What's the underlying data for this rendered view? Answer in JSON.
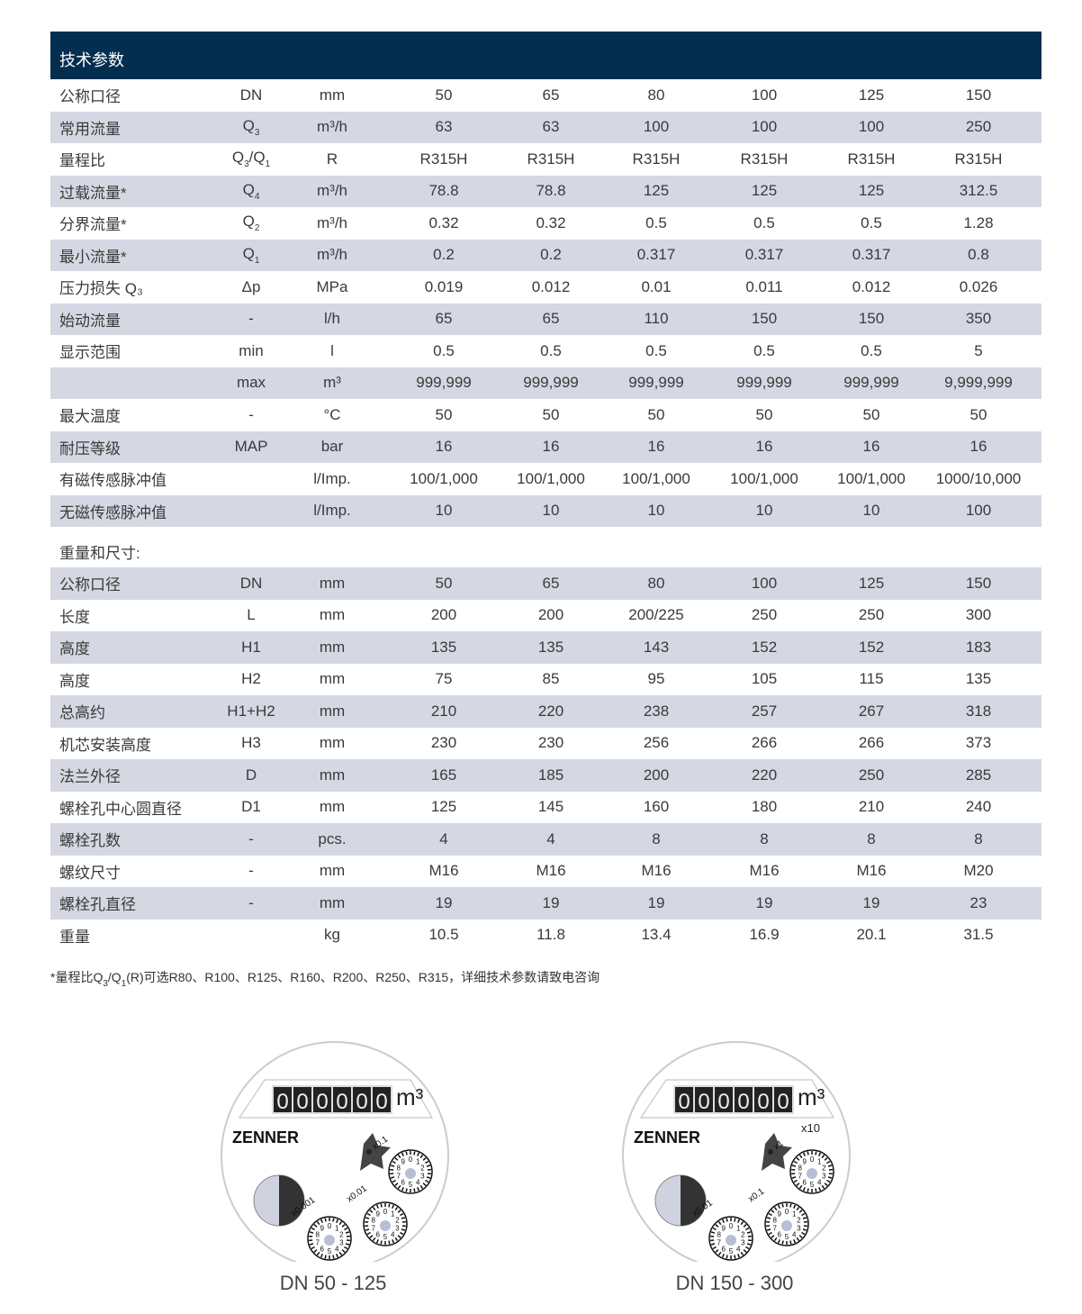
{
  "header": {
    "title": "技术参数"
  },
  "tech": {
    "rows": [
      {
        "label": "公称口径",
        "symbol": [
          {
            "t": "DN"
          }
        ],
        "unit": "mm",
        "values": [
          "50",
          "65",
          "80",
          "100",
          "125",
          "150"
        ]
      },
      {
        "label": "常用流量",
        "symbol": [
          {
            "t": "Q"
          },
          {
            "s": "3"
          }
        ],
        "unit": "m³/h",
        "values": [
          "63",
          "63",
          "100",
          "100",
          "100",
          "250"
        ]
      },
      {
        "label": "量程比",
        "symbol": [
          {
            "t": "Q"
          },
          {
            "s": "3"
          },
          {
            "t": "/Q"
          },
          {
            "s": "1"
          }
        ],
        "unit": "R",
        "values": [
          "R315H",
          "R315H",
          "R315H",
          "R315H",
          "R315H",
          "R315H"
        ]
      },
      {
        "label": "过载流量*",
        "symbol": [
          {
            "t": "Q"
          },
          {
            "s": "4"
          }
        ],
        "unit": "m³/h",
        "values": [
          "78.8",
          "78.8",
          "125",
          "125",
          "125",
          "312.5"
        ]
      },
      {
        "label": "分界流量*",
        "symbol": [
          {
            "t": "Q"
          },
          {
            "s": "2"
          }
        ],
        "unit": "m³/h",
        "values": [
          "0.32",
          "0.32",
          "0.5",
          "0.5",
          "0.5",
          "1.28"
        ]
      },
      {
        "label": "最小流量*",
        "symbol": [
          {
            "t": "Q"
          },
          {
            "s": "1"
          }
        ],
        "unit": "m³/h",
        "values": [
          "0.2",
          "0.2",
          "0.317",
          "0.317",
          "0.317",
          "0.8"
        ]
      },
      {
        "label": "压力损失 Q₃",
        "symbol": [
          {
            "t": "Δp"
          }
        ],
        "unit": "MPa",
        "values": [
          "0.019",
          "0.012",
          "0.01",
          "0.011",
          "0.012",
          "0.026"
        ]
      },
      {
        "label": "始动流量",
        "symbol": [
          {
            "t": "-"
          }
        ],
        "unit": "l/h",
        "values": [
          "65",
          "65",
          "110",
          "150",
          "150",
          "350"
        ]
      },
      {
        "label": "显示范围",
        "symbol": [
          {
            "t": "min"
          }
        ],
        "unit": "l",
        "values": [
          "0.5",
          "0.5",
          "0.5",
          "0.5",
          "0.5",
          "5"
        ]
      },
      {
        "label": "",
        "symbol": [
          {
            "t": "max"
          }
        ],
        "unit": "m³",
        "values": [
          "999,999",
          "999,999",
          "999,999",
          "999,999",
          "999,999",
          "9,999,999"
        ]
      },
      {
        "label": "最大温度",
        "symbol": [
          {
            "t": "-"
          }
        ],
        "unit": "°C",
        "values": [
          "50",
          "50",
          "50",
          "50",
          "50",
          "50"
        ]
      },
      {
        "label": "耐压等级",
        "symbol": [
          {
            "t": "MAP"
          }
        ],
        "unit": "bar",
        "values": [
          "16",
          "16",
          "16",
          "16",
          "16",
          "16"
        ]
      },
      {
        "label": "有磁传感脉冲值",
        "symbol": [],
        "unit": "l/Imp.",
        "values": [
          "100/1,000",
          "100/1,000",
          "100/1,000",
          "100/1,000",
          "100/1,000",
          "1000/10,000"
        ]
      },
      {
        "label": "无磁传感脉冲值",
        "symbol": [],
        "unit": "l/Imp.",
        "values": [
          "10",
          "10",
          "10",
          "10",
          "10",
          "100"
        ]
      }
    ]
  },
  "dims": {
    "title": "重量和尺寸:",
    "rows": [
      {
        "label": "公称口径",
        "symbol": [
          {
            "t": "DN"
          }
        ],
        "unit": "mm",
        "values": [
          "50",
          "65",
          "80",
          "100",
          "125",
          "150"
        ]
      },
      {
        "label": "长度",
        "symbol": [
          {
            "t": "L"
          }
        ],
        "unit": "mm",
        "values": [
          "200",
          "200",
          "200/225",
          "250",
          "250",
          "300"
        ]
      },
      {
        "label": "高度",
        "symbol": [
          {
            "t": "H1"
          }
        ],
        "unit": "mm",
        "values": [
          "135",
          "135",
          "143",
          "152",
          "152",
          "183"
        ]
      },
      {
        "label": "高度",
        "symbol": [
          {
            "t": "H2"
          }
        ],
        "unit": "mm",
        "values": [
          "75",
          "85",
          "95",
          "105",
          "115",
          "135"
        ]
      },
      {
        "label": "总高约",
        "symbol": [
          {
            "t": "H1+H2"
          }
        ],
        "unit": "mm",
        "values": [
          "210",
          "220",
          "238",
          "257",
          "267",
          "318"
        ]
      },
      {
        "label": "机芯安装高度",
        "symbol": [
          {
            "t": "H3"
          }
        ],
        "unit": "mm",
        "values": [
          "230",
          "230",
          "256",
          "266",
          "266",
          "373"
        ]
      },
      {
        "label": "法兰外径",
        "symbol": [
          {
            "t": "D"
          }
        ],
        "unit": "mm",
        "values": [
          "165",
          "185",
          "200",
          "220",
          "250",
          "285"
        ]
      },
      {
        "label": "螺栓孔中心圆直径",
        "symbol": [
          {
            "t": "D1"
          }
        ],
        "unit": "mm",
        "values": [
          "125",
          "145",
          "160",
          "180",
          "210",
          "240"
        ]
      },
      {
        "label": "螺栓孔数",
        "symbol": [
          {
            "t": "-"
          }
        ],
        "unit": "pcs.",
        "values": [
          "4",
          "4",
          "8",
          "8",
          "8",
          "8"
        ]
      },
      {
        "label": "螺纹尺寸",
        "symbol": [
          {
            "t": "-"
          }
        ],
        "unit": "mm",
        "values": [
          "M16",
          "M16",
          "M16",
          "M16",
          "M16",
          "M20"
        ]
      },
      {
        "label": "螺栓孔直径",
        "symbol": [
          {
            "t": "-"
          }
        ],
        "unit": "mm",
        "values": [
          "19",
          "19",
          "19",
          "19",
          "19",
          "23"
        ]
      },
      {
        "label": "重量",
        "symbol": [],
        "unit": "kg",
        "values": [
          "10.5",
          "11.8",
          "13.4",
          "16.9",
          "20.1",
          "31.5"
        ]
      }
    ]
  },
  "note": [
    {
      "t": "*量程比Q"
    },
    {
      "s": "3"
    },
    {
      "t": "/Q"
    },
    {
      "s": "1"
    },
    {
      "t": "(R)可选R80、R100、R125、R160、R200、R250、R315，详细技术参数请致电咨询"
    }
  ],
  "meters": [
    {
      "caption": "DN 50 - 125",
      "digits": "000000",
      "unit": "m³",
      "multiplier": "",
      "brand": "ZENNER",
      "dials": [
        "x0.1",
        "x0.01",
        "x0.001"
      ]
    },
    {
      "caption": "DN 150 - 300",
      "digits": "000000",
      "unit": "m³",
      "multiplier": "x10",
      "brand": "ZENNER",
      "dials": [
        "x1",
        "x0.1",
        "x0.01"
      ]
    }
  ],
  "colors": {
    "header": "#032e4f",
    "shade": "#d5d8e2"
  }
}
